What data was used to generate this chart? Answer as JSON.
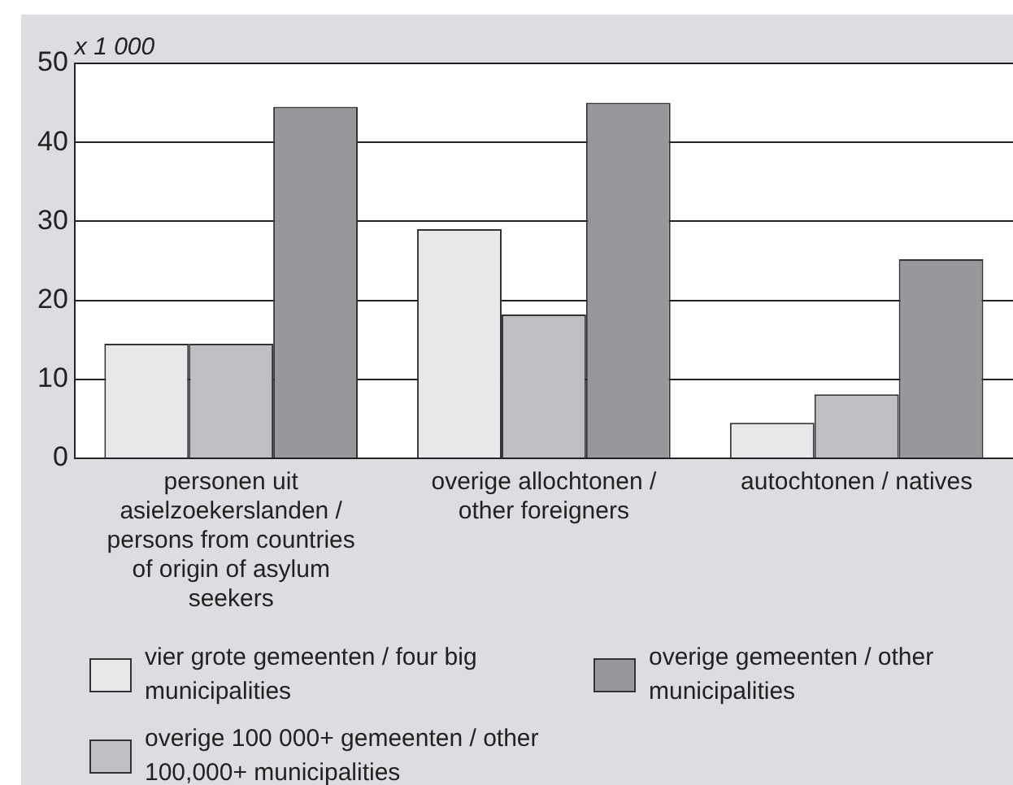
{
  "chart_data": {
    "type": "bar",
    "ylabel": "x 1 000",
    "categories": [
      "personen uit asielzoekerslanden / persons from countries of origin of asylum seekers",
      "overige allochtonen / other foreigners",
      "autochtonen / natives"
    ],
    "series": [
      {
        "name": "vier grote gemeenten / four big municipalities",
        "color": "#e8e8ea",
        "values": [
          14.5,
          29.0,
          4.5
        ]
      },
      {
        "name": "overige 100 000+ gemeenten / other 100,000+ municipalities",
        "color": "#bebfc3",
        "values": [
          14.5,
          18.2,
          8.1
        ]
      },
      {
        "name": "overige gemeenten / other municipalities",
        "color": "#97989c",
        "values": [
          44.5,
          45.0,
          25.2
        ]
      }
    ],
    "ylim": [
      0,
      50
    ],
    "yticks": [
      0,
      10,
      20,
      30,
      40,
      50
    ],
    "grid": "y",
    "legend": "bottom"
  }
}
